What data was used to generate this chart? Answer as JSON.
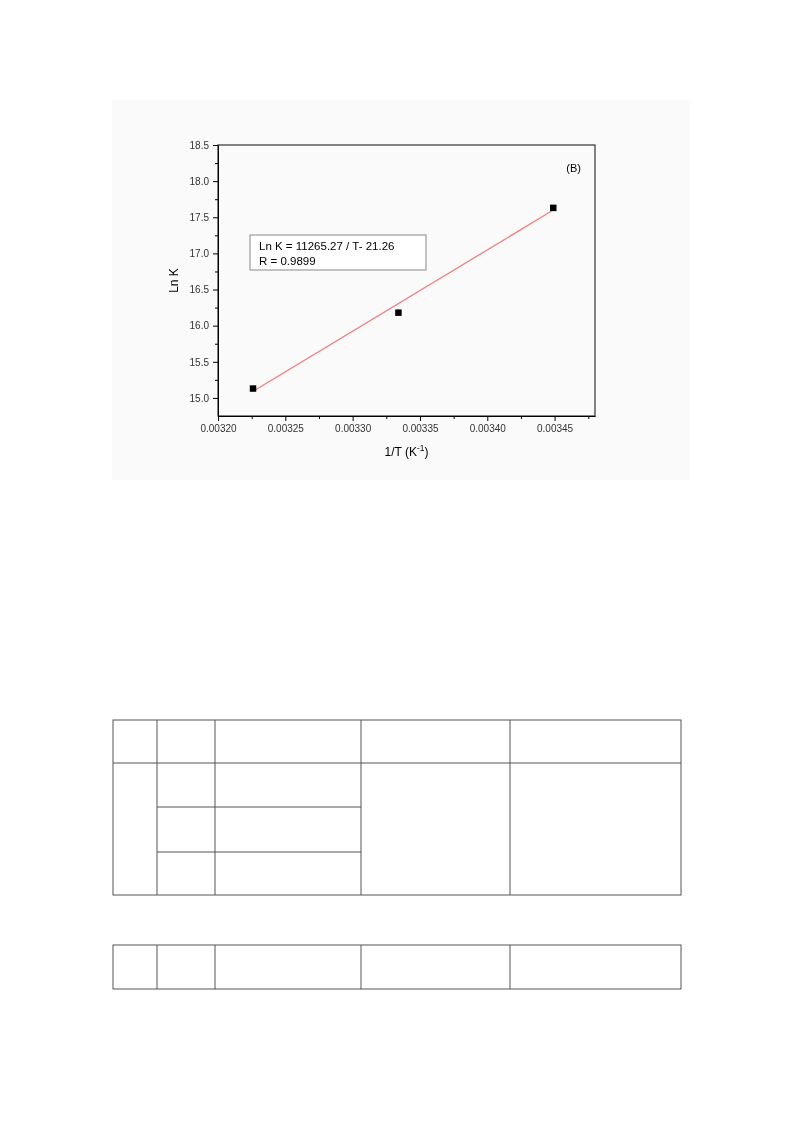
{
  "chart_data": {
    "type": "scatter",
    "xlabel": "1/T (K$^{-1}$)",
    "ylabel": "Ln K",
    "annotations": [
      "(B)",
      "Ln K = 11265.27 / T- 21.26",
      "R = 0.9899"
    ],
    "series": [
      {
        "type": "scatter",
        "color": "#000000",
        "marker": "square",
        "x": [
          0.003226,
          0.003334,
          0.003449
        ],
        "values": [
          15.13,
          16.18,
          17.63
        ]
      },
      {
        "type": "line",
        "color": "#f08080",
        "marker": "none",
        "line_style": "solid",
        "x": [
          0.003226,
          0.003449
        ],
        "values": [
          15.09,
          17.6
        ]
      }
    ],
    "xlim": [
      0.0032,
      0.00348
    ],
    "ylim": [
      14.75,
      18.5
    ],
    "xticks": [
      {
        "value": 0.0032,
        "label": "0.00320"
      },
      {
        "value": 0.003225,
        "label": null
      },
      {
        "value": 0.00325,
        "label": "0.00325"
      },
      {
        "value": 0.003275,
        "label": null
      },
      {
        "value": 0.0033,
        "label": "0.00330"
      },
      {
        "value": 0.003325,
        "label": null
      },
      {
        "value": 0.00335,
        "label": "0.00335"
      },
      {
        "value": 0.003375,
        "label": null
      },
      {
        "value": 0.0034,
        "label": "0.00340"
      },
      {
        "value": 0.003425,
        "label": null
      },
      {
        "value": 0.00345,
        "label": "0.00345"
      },
      {
        "value": 0.003475,
        "label": null
      }
    ],
    "yticks": [
      {
        "value": 15,
        "label": "15.0"
      },
      {
        "value": 15.25,
        "label": null
      },
      {
        "value": 15.5,
        "label": "15.5"
      },
      {
        "value": 15.75,
        "label": null
      },
      {
        "value": 16,
        "label": "16.0"
      },
      {
        "value": 16.25,
        "label": null
      },
      {
        "value": 16.5,
        "label": "16.5"
      },
      {
        "value": 16.75,
        "label": null
      },
      {
        "value": 17,
        "label": "17.0"
      },
      {
        "value": 17.25,
        "label": null
      },
      {
        "value": 17.5,
        "label": "17.5"
      },
      {
        "value": 17.75,
        "label": null
      },
      {
        "value": 18,
        "label": "18.0"
      },
      {
        "value": 18.25,
        "label": null
      },
      {
        "value": 18.5,
        "label": "18.5"
      }
    ],
    "grid": false
  }
}
